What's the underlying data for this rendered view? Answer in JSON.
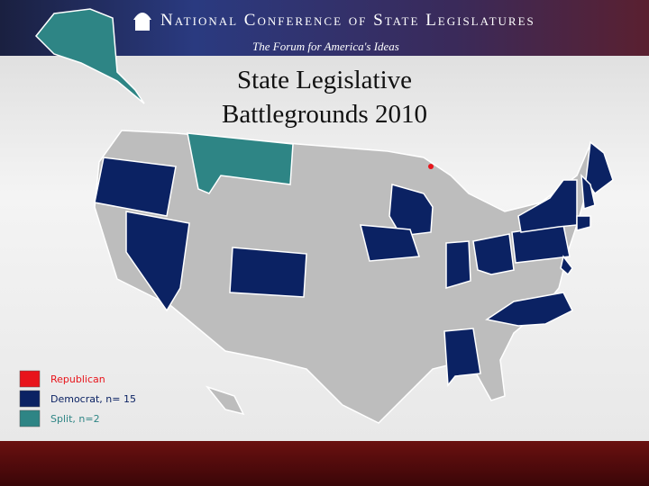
{
  "header": {
    "organization": "National Conference of State Legislatures",
    "tagline": "The Forum for America's Ideas"
  },
  "title": "State Legislative Battlegrounds 2010",
  "legend": [
    {
      "label": "Republican",
      "color": "#e8141b"
    },
    {
      "label": "Democrat, n= 15",
      "color": "#0b2263"
    },
    {
      "label": "Split, n=2",
      "color": "#2e8585"
    }
  ]
}
